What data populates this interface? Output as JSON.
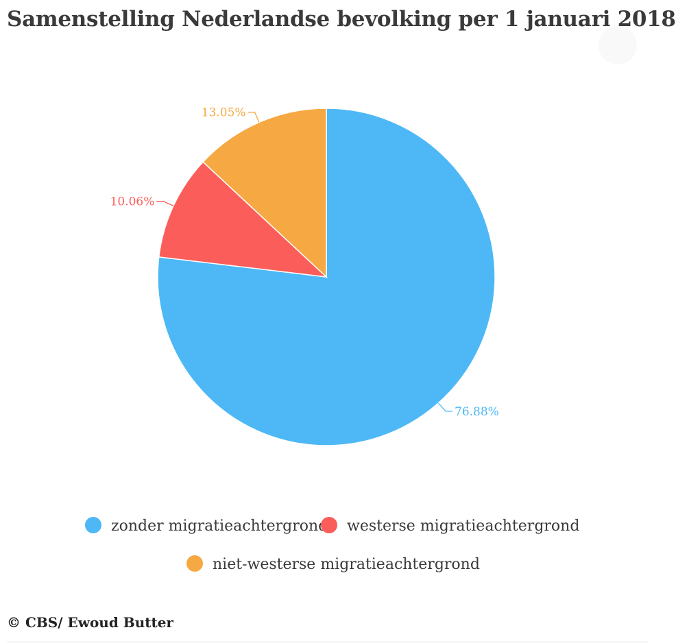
{
  "header": {
    "title": "Samenstelling Nederlandse bevolking per 1 januari 2018"
  },
  "chart_data": {
    "type": "pie",
    "title": "Samenstelling Nederlandse bevolking per 1 januari 2018",
    "legend_position": "bottom",
    "slices": [
      {
        "name": "zonder migratieachtergrond",
        "value": 76.88,
        "label": "76.88%",
        "color": "#4db8f5"
      },
      {
        "name": "westerse migratieachtergrond",
        "value": 10.06,
        "label": "10.06%",
        "color": "#fb5e5a"
      },
      {
        "name": "niet-westerse migratieachtergrond",
        "value": 13.05,
        "label": "13.05%",
        "color": "#f6a842"
      }
    ]
  },
  "footer": {
    "credit": "© CBS/ Ewoud Butter"
  }
}
